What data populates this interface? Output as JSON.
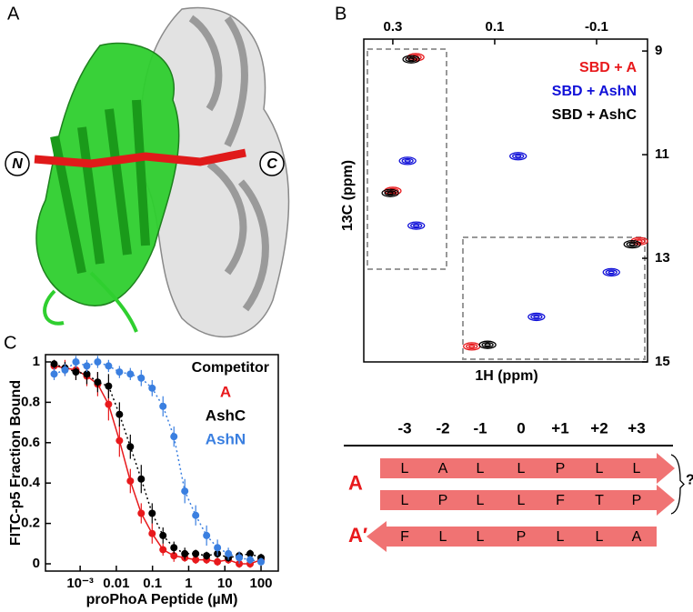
{
  "panel_labels": [
    "A",
    "B",
    "C"
  ],
  "structure": {
    "n_label": "N",
    "c_label": "C"
  },
  "chart_data": [
    {
      "type": "scatter",
      "marker": "contour",
      "xlabel": "1H (ppm)",
      "ylabel": "13C (ppm)",
      "xlim": [
        0.357,
        -0.2
      ],
      "ylim": [
        8.77,
        15
      ],
      "xticks": [
        0.3,
        0.1,
        -0.1
      ],
      "yticks": [
        9,
        11,
        13,
        15
      ],
      "x_axis_side": "top",
      "y_axis_side": "right",
      "legend": "upper right",
      "series": [
        {
          "name": "SBD + A",
          "color": "#e8191c",
          "x": [
            0.255,
            0.3,
            0.145,
            -0.184
          ],
          "values": [
            9.12,
            11.7,
            14.7,
            12.67
          ]
        },
        {
          "name": "SBD + AshN",
          "color": "#1010d8",
          "x": [
            0.271,
            0.254,
            0.054,
            0.018,
            -0.129
          ],
          "values": [
            11.12,
            12.37,
            11.03,
            14.13,
            13.27
          ]
        },
        {
          "name": "SBD + AshC",
          "color": "#000000",
          "x": [
            0.264,
            0.305,
            0.114,
            -0.17
          ],
          "values": [
            9.16,
            11.74,
            14.67,
            12.73
          ]
        }
      ]
    },
    {
      "type": "scatter",
      "marker": "circle",
      "xscale": "log",
      "xlabel": "proPhoA Peptide (µM)",
      "ylabel": "FITC-p5 Fraction Bound",
      "xlim": [
        0.00011,
        300
      ],
      "ylim": [
        -0.036,
        1.036
      ],
      "xticks": [
        {
          "value": 0.001,
          "label": "10⁻³"
        },
        0.01,
        0.1,
        1,
        10,
        100
      ],
      "yticks": [
        0,
        0.2,
        0.4,
        0.6,
        0.8,
        1
      ],
      "legend": "upper right",
      "legend_title": "Competitor",
      "x": [
        0.000191,
        0.000381,
        0.000763,
        0.00153,
        0.00305,
        0.0061,
        0.0122,
        0.0244,
        0.0488,
        0.0977,
        0.195,
        0.391,
        0.781,
        1.5625,
        3.125,
        6.25,
        12.5,
        25,
        50,
        100
      ],
      "series": [
        {
          "name": "A",
          "color": "#e8191c",
          "line_style": "solid",
          "values": [
            0.98,
            0.97,
            0.96,
            0.93,
            0.89,
            0.79,
            0.61,
            0.41,
            0.25,
            0.15,
            0.07,
            0.04,
            0.03,
            0.02,
            0.02,
            0.01,
            0.02,
            0.0,
            0.0,
            0.02
          ],
          "errors": [
            0.03,
            0.04,
            0.05,
            0.05,
            0.06,
            0.08,
            0.08,
            0.06,
            0.05,
            0.05,
            0.03,
            0.03,
            0.02,
            0.02,
            0.02,
            0.02,
            0.02,
            0.02,
            0.02,
            0.02
          ]
        },
        {
          "name": "AshC",
          "color": "#000000",
          "line_style": "dotted",
          "values": [
            0.99,
            0.97,
            0.95,
            0.94,
            0.9,
            0.88,
            0.74,
            0.58,
            0.42,
            0.25,
            0.14,
            0.08,
            0.05,
            0.05,
            0.04,
            0.05,
            0.03,
            0.04,
            0.05,
            0.03
          ],
          "errors": [
            0.02,
            0.03,
            0.04,
            0.05,
            0.05,
            0.06,
            0.06,
            0.06,
            0.07,
            0.05,
            0.04,
            0.03,
            0.03,
            0.02,
            0.02,
            0.02,
            0.02,
            0.02,
            0.02,
            0.02
          ]
        },
        {
          "name": "AshN",
          "color": "#3a7fe0",
          "line_style": "dotted",
          "values": [
            0.94,
            0.96,
            1.0,
            0.98,
            1.0,
            0.98,
            0.95,
            0.94,
            0.92,
            0.87,
            0.78,
            0.63,
            0.36,
            0.24,
            0.14,
            0.08,
            0.05,
            0.03,
            0.02,
            0.01
          ],
          "errors": [
            0.03,
            0.03,
            0.03,
            0.03,
            0.03,
            0.03,
            0.03,
            0.03,
            0.04,
            0.04,
            0.05,
            0.05,
            0.06,
            0.05,
            0.05,
            0.04,
            0.03,
            0.03,
            0.02,
            0.02
          ]
        }
      ]
    }
  ],
  "sequence": {
    "positions": [
      "-3",
      "-2",
      "-1",
      "0",
      "+1",
      "+2",
      "+3"
    ],
    "groups": [
      {
        "label": "A",
        "bracket_label": "?",
        "strands": [
          {
            "direction": "right",
            "residues": [
              "L",
              "A",
              "L",
              "L",
              "P",
              "L",
              "L"
            ]
          },
          {
            "direction": "right",
            "residues": [
              "L",
              "P",
              "L",
              "L",
              "F",
              "T",
              "P"
            ]
          }
        ]
      },
      {
        "label": "A′",
        "strands": [
          {
            "direction": "left",
            "residues": [
              "F",
              "L",
              "L",
              "P",
              "L",
              "L",
              "A"
            ]
          }
        ]
      }
    ]
  }
}
